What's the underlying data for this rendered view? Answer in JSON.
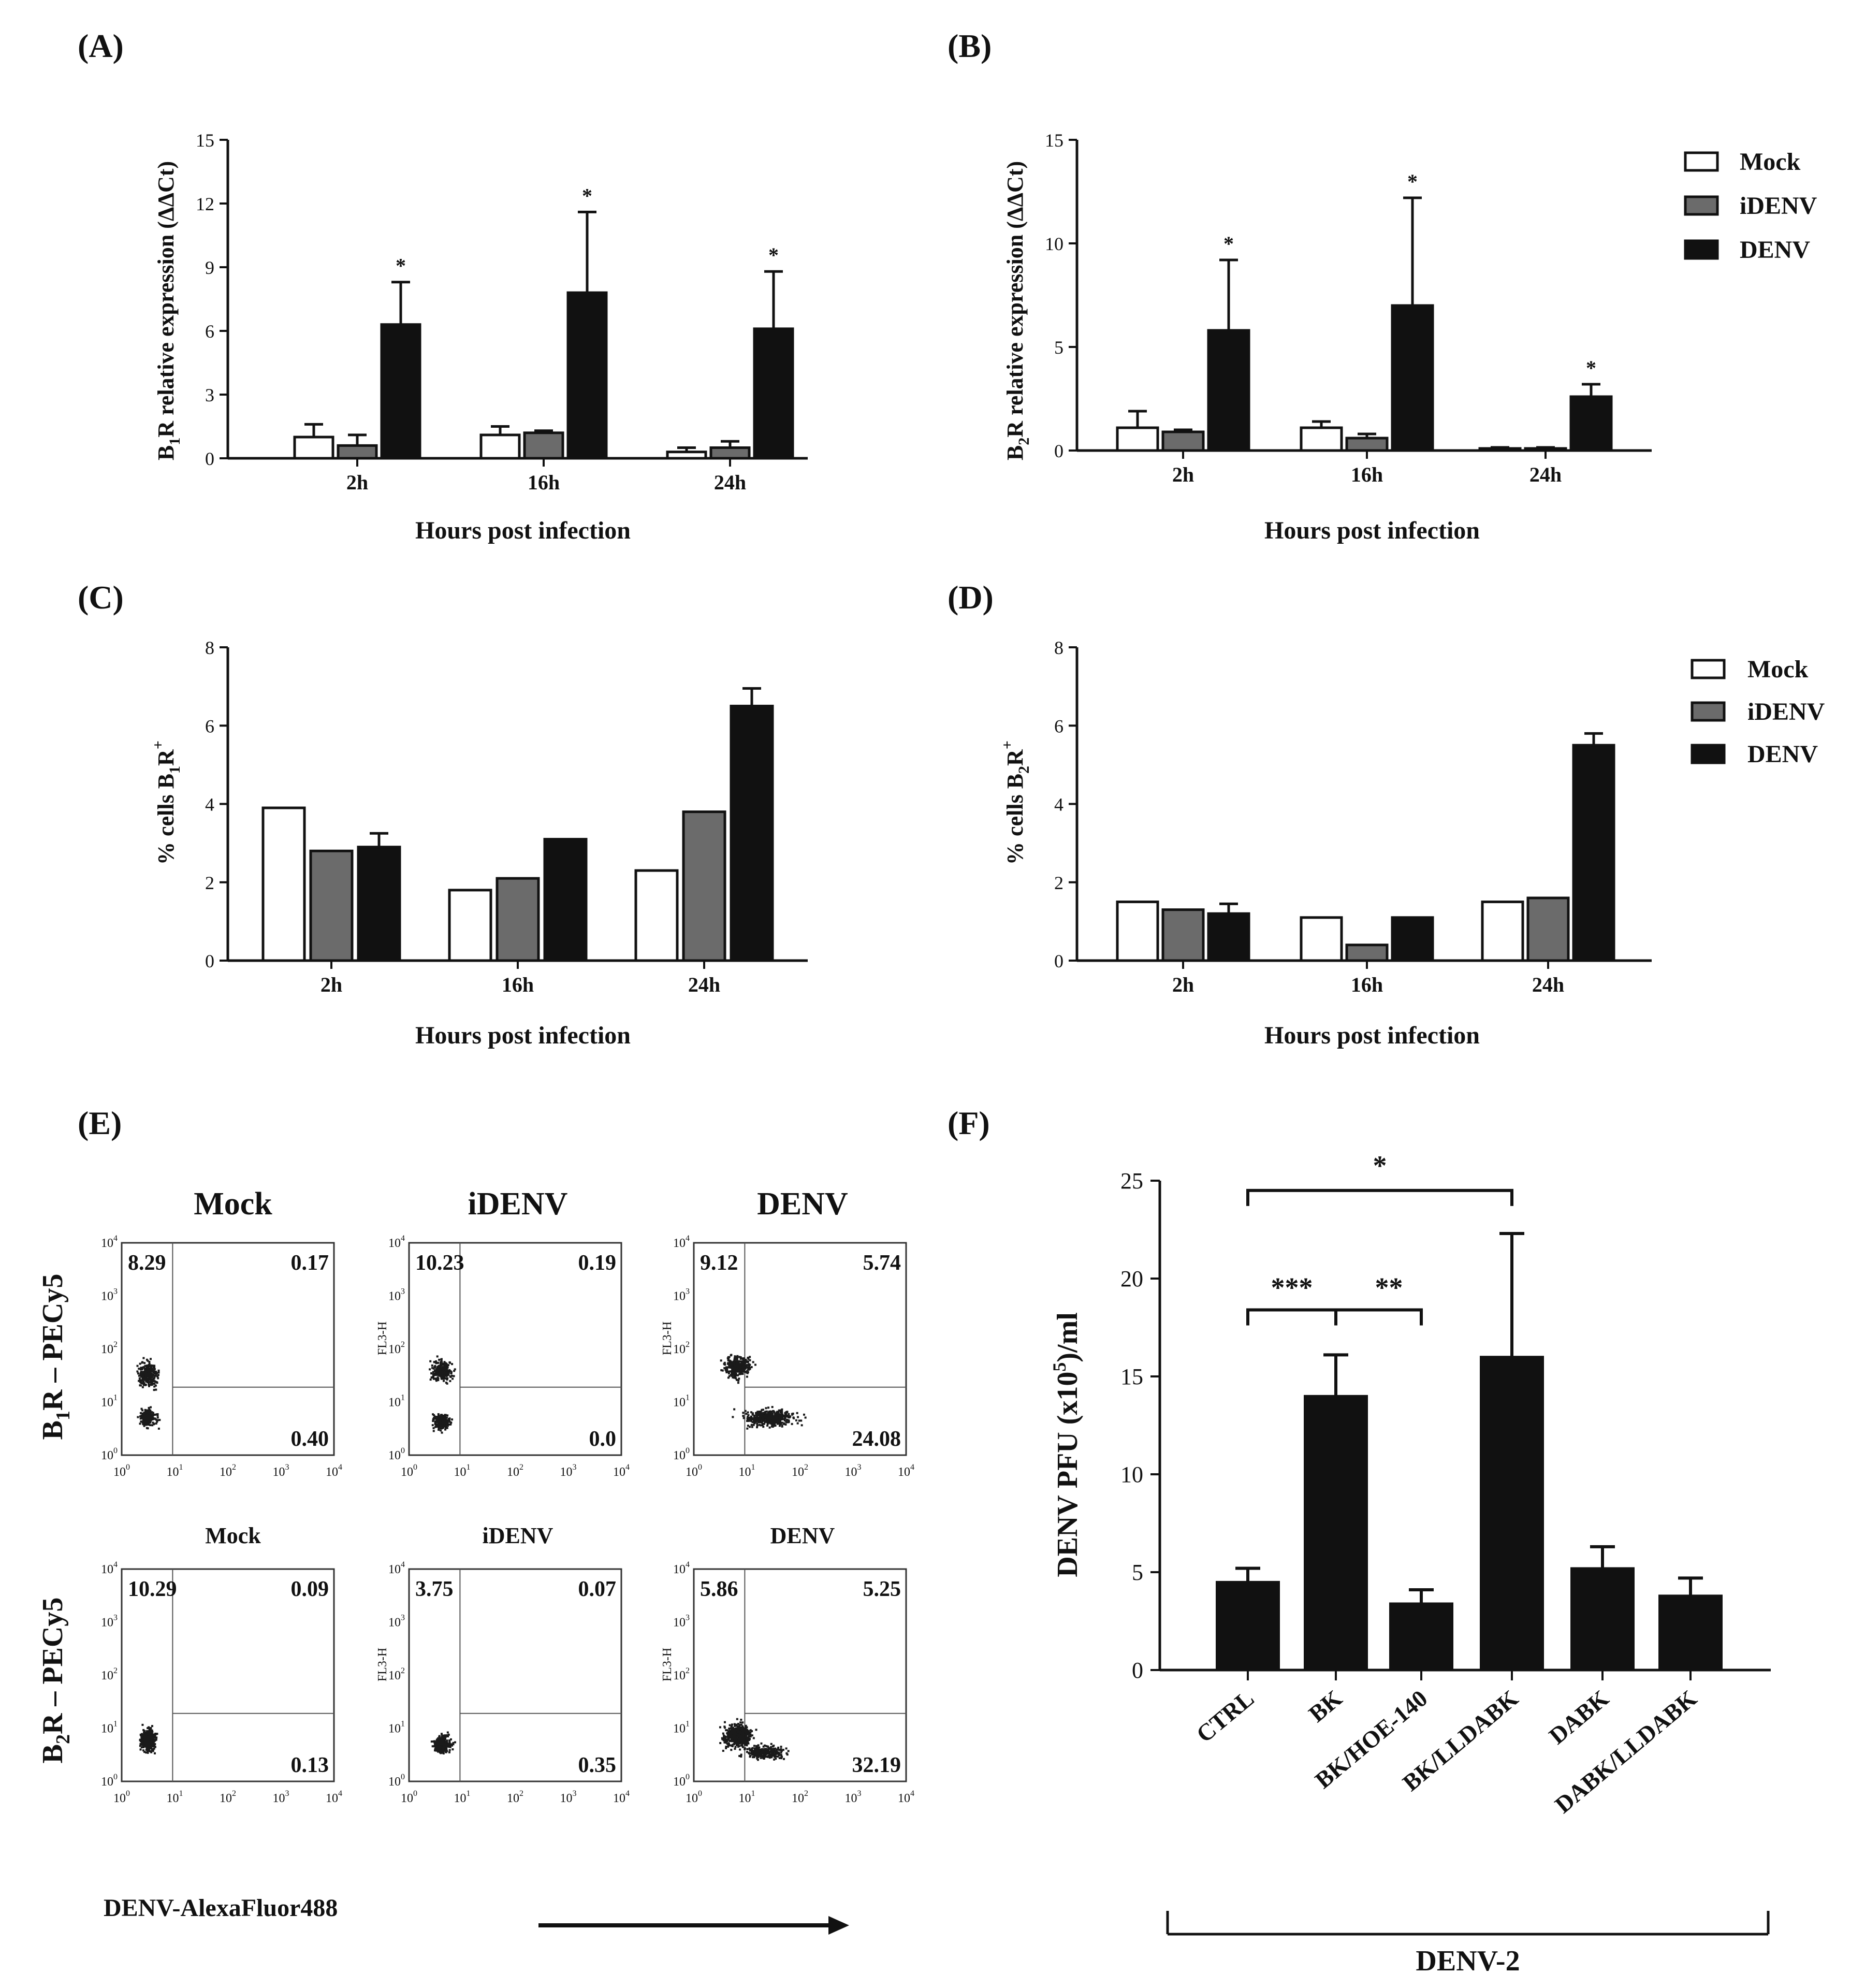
{
  "colors": {
    "mock": "#ffffff",
    "idenv": "#6b6b6b",
    "denv": "#111111",
    "dot": "#1a1a1a",
    "axis": "#111111"
  },
  "legend": {
    "items": [
      "Mock",
      "iDENV",
      "DENV"
    ]
  },
  "panels": {
    "A": {
      "label": "(A)",
      "ylabel_main": "B",
      "ylabel_sub": "1",
      "ylabel_rest": "R relative expression (ΔΔCt)",
      "xlabel": "Hours post infection"
    },
    "B": {
      "label": "(B)",
      "ylabel_main": "B",
      "ylabel_sub": "2",
      "ylabel_rest": "R relative expression (ΔΔCt)",
      "xlabel": "Hours post infection"
    },
    "C": {
      "label": "(C)",
      "ylabel_main": "% cells B",
      "ylabel_sub": "1",
      "ylabel_rest": "R",
      "ylabel_sup": "+",
      "xlabel": "Hours post infection"
    },
    "D": {
      "label": "(D)",
      "ylabel_main": "% cells B",
      "ylabel_sub": "2",
      "ylabel_rest": "R",
      "ylabel_sup": "+",
      "xlabel": "Hours post infection"
    },
    "E": {
      "label": "(E)",
      "row_labels": [
        {
          "main": "B",
          "sub": "1",
          "rest": "R – PECy5"
        },
        {
          "main": "B",
          "sub": "2",
          "rest": "R – PECy5"
        }
      ],
      "col_titles_row1": [
        "Mock",
        "iDENV",
        "DENV"
      ],
      "col_titles_row2": [
        "Mock",
        "iDENV",
        "DENV"
      ],
      "axis_label": "FL3-H",
      "x_ticks": [
        "10",
        "10",
        "10",
        "10",
        "10"
      ],
      "x_exps": [
        "0",
        "1",
        "2",
        "3",
        "4"
      ],
      "xlabel": "DENV-AlexaFluor488",
      "quadrants": [
        [
          [
            "8.29",
            "0.17",
            "0.40"
          ],
          [
            "10.23",
            "0.19",
            "0.0"
          ],
          [
            "9.12",
            "5.74",
            "24.08"
          ]
        ],
        [
          [
            "10.29",
            "0.09",
            "0.13"
          ],
          [
            "3.75",
            "0.07",
            "0.35"
          ],
          [
            "5.86",
            "5.25",
            "32.19"
          ]
        ]
      ]
    },
    "F": {
      "label": "(F)",
      "ylabel_pre": "DENV PFU (x10",
      "ylabel_sup": "5",
      "ylabel_post": ")/ml",
      "group_label": "DENV-2",
      "sig": [
        "*",
        "***",
        "**"
      ]
    }
  },
  "chart_data": [
    {
      "panel": "A",
      "type": "bar",
      "categories": [
        "2h",
        "16h",
        "24h"
      ],
      "ylim": [
        0,
        15
      ],
      "yticks": [
        "0",
        "3",
        "6",
        "9",
        "12",
        "15"
      ],
      "series": [
        {
          "name": "Mock",
          "values": [
            1.0,
            1.1,
            0.3
          ],
          "errors": [
            0.6,
            0.4,
            0.2
          ]
        },
        {
          "name": "iDENV",
          "values": [
            0.6,
            1.2,
            0.5
          ],
          "errors": [
            0.5,
            0.1,
            0.3
          ]
        },
        {
          "name": "DENV",
          "values": [
            6.3,
            7.8,
            6.1
          ],
          "errors": [
            2.0,
            3.8,
            2.7
          ]
        }
      ],
      "significance": [
        "*",
        "*",
        "*"
      ]
    },
    {
      "panel": "B",
      "type": "bar",
      "categories": [
        "2h",
        "16h",
        "24h"
      ],
      "ylim": [
        0,
        15
      ],
      "yticks": [
        "0",
        "5",
        "10",
        "15"
      ],
      "series": [
        {
          "name": "Mock",
          "values": [
            1.1,
            1.1,
            0.1
          ],
          "errors": [
            0.8,
            0.3,
            0.05
          ]
        },
        {
          "name": "iDENV",
          "values": [
            0.9,
            0.6,
            0.1
          ],
          "errors": [
            0.1,
            0.2,
            0.05
          ]
        },
        {
          "name": "DENV",
          "values": [
            5.8,
            7.0,
            2.6
          ],
          "errors": [
            3.4,
            5.2,
            0.6
          ]
        }
      ],
      "significance": [
        "*",
        "*",
        "*"
      ]
    },
    {
      "panel": "C",
      "type": "bar",
      "categories": [
        "2h",
        "16h",
        "24h"
      ],
      "ylim": [
        0,
        8
      ],
      "yticks": [
        "0",
        "2",
        "4",
        "6",
        "8"
      ],
      "series": [
        {
          "name": "Mock",
          "values": [
            3.9,
            1.8,
            2.3
          ],
          "errors": [
            0,
            0,
            0
          ]
        },
        {
          "name": "iDENV",
          "values": [
            2.8,
            2.1,
            3.8
          ],
          "errors": [
            0,
            0,
            0
          ]
        },
        {
          "name": "DENV",
          "values": [
            2.9,
            3.1,
            6.5
          ],
          "errors": [
            0.35,
            0,
            0.45
          ]
        }
      ]
    },
    {
      "panel": "D",
      "type": "bar",
      "categories": [
        "2h",
        "16h",
        "24h"
      ],
      "ylim": [
        0,
        8
      ],
      "yticks": [
        "0",
        "2",
        "4",
        "6",
        "8"
      ],
      "series": [
        {
          "name": "Mock",
          "values": [
            1.5,
            1.1,
            1.5
          ],
          "errors": [
            0,
            0,
            0
          ]
        },
        {
          "name": "iDENV",
          "values": [
            1.3,
            0.4,
            1.6
          ],
          "errors": [
            0,
            0,
            0
          ]
        },
        {
          "name": "DENV",
          "values": [
            1.2,
            1.1,
            5.5
          ],
          "errors": [
            0.25,
            0,
            0.3
          ]
        }
      ]
    },
    {
      "panel": "F",
      "type": "bar",
      "categories": [
        "CTRL",
        "BK",
        "BK/HOE-140",
        "BK/LLDABK",
        "DABK",
        "DABK/LLDABK"
      ],
      "ylim": [
        0,
        25
      ],
      "yticks": [
        "0",
        "5",
        "10",
        "15",
        "20",
        "25"
      ],
      "values": [
        4.5,
        14.0,
        3.4,
        16.0,
        5.2,
        3.8
      ],
      "errors": [
        0.7,
        2.1,
        0.7,
        6.3,
        1.1,
        0.9
      ]
    }
  ]
}
